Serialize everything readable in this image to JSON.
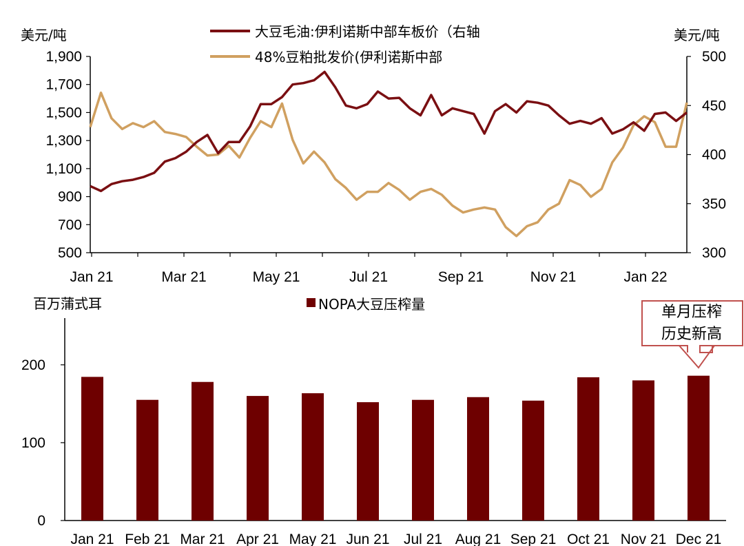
{
  "colors": {
    "oil": "#7a0f12",
    "meal": "#d0a060",
    "bar": "#6e0000",
    "axis": "#000000",
    "callout_border": "#c0504d"
  },
  "chart_data": [
    {
      "type": "line",
      "left_unit": "美元/吨",
      "right_unit": "美元/吨",
      "x_tick_labels": [
        "Jan 21",
        "Mar 21",
        "May 21",
        "Jul 21",
        "Sep 21",
        "Nov 21",
        "Jan 22"
      ],
      "left_ylim": [
        500,
        1900
      ],
      "left_ticks": [
        "1,900",
        "1,700",
        "1,500",
        "1,300",
        "1,100",
        "900",
        "700",
        "500"
      ],
      "right_ylim": [
        300,
        500
      ],
      "right_ticks": [
        "500",
        "450",
        "400",
        "350",
        "300"
      ],
      "legend_position": "top",
      "series": [
        {
          "name": "大豆毛油:伊利诺斯中部车板价（右轴",
          "axis": "left",
          "color_key": "oil",
          "values": [
            975,
            940,
            990,
            1010,
            1020,
            1040,
            1070,
            1150,
            1175,
            1220,
            1290,
            1340,
            1210,
            1290,
            1290,
            1400,
            1560,
            1560,
            1610,
            1700,
            1710,
            1730,
            1790,
            1680,
            1550,
            1530,
            1560,
            1650,
            1600,
            1605,
            1530,
            1480,
            1625,
            1480,
            1530,
            1510,
            1490,
            1350,
            1510,
            1560,
            1500,
            1580,
            1570,
            1550,
            1480,
            1420,
            1440,
            1420,
            1460,
            1350,
            1380,
            1430,
            1370,
            1490,
            1500,
            1440,
            1500
          ]
        },
        {
          "name": "48%豆粕批发价(伊利诺斯中部",
          "axis": "right",
          "color_key": "meal",
          "values": [
            428,
            463,
            437,
            426,
            432,
            428,
            434,
            423,
            421,
            418,
            408,
            399,
            400,
            409,
            397,
            417,
            434,
            428,
            452,
            415,
            391,
            403,
            392,
            375,
            366,
            354,
            362,
            362,
            371,
            364,
            354,
            362,
            365,
            359,
            348,
            341,
            344,
            346,
            344,
            326,
            317,
            327,
            331,
            344,
            350,
            374,
            369,
            357,
            365,
            392,
            407,
            430,
            439,
            433,
            408,
            408,
            453
          ]
        }
      ]
    },
    {
      "type": "bar",
      "ylabel": "百万蒲式耳",
      "legend": "NOPA大豆压榨量",
      "ylim": [
        0,
        260
      ],
      "y_ticks": [
        "200",
        "100",
        "0"
      ],
      "categories": [
        "Jan 21",
        "Feb 21",
        "Mar 21",
        "Apr 21",
        "May 21",
        "Jun 21",
        "Jul 21",
        "Aug 21",
        "Sep 21",
        "Oct 21",
        "Nov 21",
        "Dec 21"
      ],
      "values": [
        184.5,
        155,
        178,
        160,
        163.5,
        152,
        155,
        158.5,
        154,
        184,
        180,
        186
      ],
      "annotation": {
        "line1": "单月压榨",
        "line2": "历史新高"
      }
    }
  ]
}
